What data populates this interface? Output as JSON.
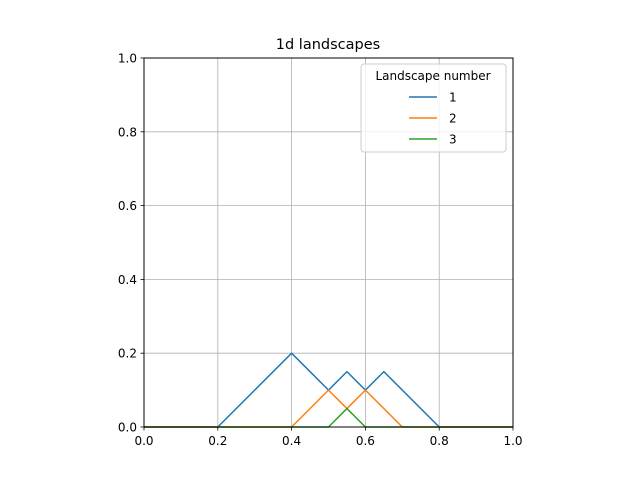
{
  "chart_data": {
    "type": "line",
    "title": "1d landscapes",
    "xlabel": "",
    "ylabel": "",
    "xlim": [
      0,
      1
    ],
    "ylim": [
      0,
      1
    ],
    "xticks": [
      "0.0",
      "0.2",
      "0.4",
      "0.6",
      "0.8",
      "1.0"
    ],
    "yticks": [
      "0.0",
      "0.2",
      "0.4",
      "0.6",
      "0.8",
      "1.0"
    ],
    "grid": true,
    "legend": {
      "title": "Landscape number",
      "placement": "top-right"
    },
    "series": [
      {
        "name": "1",
        "color": "#1f77b4",
        "x": [
          0.0,
          0.2,
          0.4,
          0.5,
          0.55,
          0.6,
          0.65,
          0.8,
          1.0
        ],
        "y": [
          0.0,
          0.0,
          0.2,
          0.1,
          0.15,
          0.1,
          0.15,
          0.0,
          0.0
        ]
      },
      {
        "name": "2",
        "color": "#ff7f0e",
        "x": [
          0.0,
          0.4,
          0.5,
          0.55,
          0.6,
          0.7,
          1.0
        ],
        "y": [
          0.0,
          0.0,
          0.1,
          0.05,
          0.1,
          0.0,
          0.0
        ]
      },
      {
        "name": "3",
        "color": "#2ca02c",
        "x": [
          0.0,
          0.5,
          0.55,
          0.6,
          1.0
        ],
        "y": [
          0.0,
          0.0,
          0.05,
          0.0,
          0.0
        ]
      }
    ]
  }
}
